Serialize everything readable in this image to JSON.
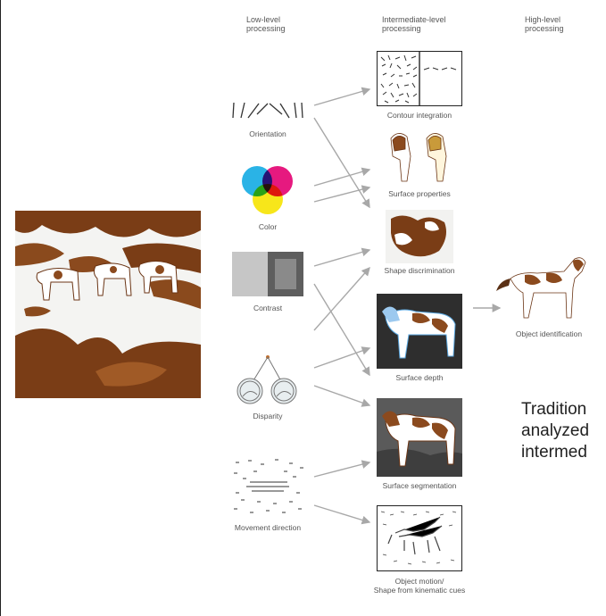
{
  "columns": {
    "low": "Low-level\nprocessing",
    "intermediate": "Intermediate-level\nprocessing",
    "high": "High-level\nprocessing"
  },
  "low_level": {
    "orientation": "Orientation",
    "color": "Color",
    "contrast": "Contrast",
    "disparity": "Disparity",
    "movement": "Movement direction"
  },
  "intermediate_level": {
    "contour": "Contour integration",
    "surface_properties": "Surface properties",
    "shape": "Shape discrimination",
    "surface_depth": "Surface depth",
    "segmentation": "Surface segmentation",
    "motion": "Object motion/\nShape from kinematic cues"
  },
  "high_level": {
    "object_id": "Object identification"
  },
  "side_text": "Tradition\nanalyzed\nintermed",
  "colors": {
    "arrow": "#a8a8a8",
    "label": "#555555",
    "brown": "#7a3d16",
    "snow": "#ffffff"
  }
}
